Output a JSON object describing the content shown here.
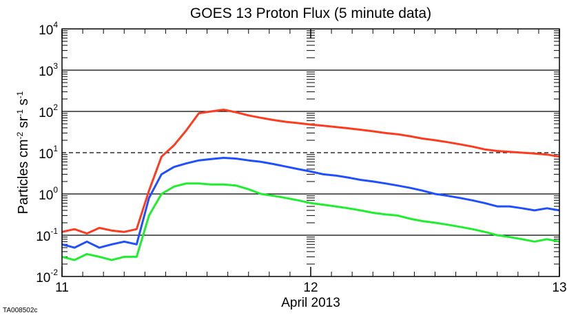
{
  "chart_data": {
    "type": "line",
    "title": "GOES 13 Proton Flux (5 minute data)",
    "ylabel": [
      "Particles cm",
      "-2",
      " sr",
      "-1",
      " s",
      "-1"
    ],
    "xlabel": "April 2013",
    "footnote": "TA008502c",
    "log_y": true,
    "grid": true,
    "threshold": 10,
    "xlim": [
      11,
      13
    ],
    "xticks": [
      11,
      12,
      13
    ],
    "ylim": [
      0.01,
      10000
    ],
    "yticks": [
      {
        "value": 0.01,
        "label": "10",
        "exponent": "-2"
      },
      {
        "value": 0.1,
        "label": "10",
        "exponent": "-1"
      },
      {
        "value": 1,
        "label": "10",
        "exponent": "0"
      },
      {
        "value": 10,
        "label": "10",
        "exponent": "1"
      },
      {
        "value": 100,
        "label": "10",
        "exponent": "2"
      },
      {
        "value": 1000,
        "label": "10",
        "exponent": "3"
      },
      {
        "value": 10000,
        "label": "10",
        "exponent": "4"
      }
    ],
    "x": [
      11.0,
      11.05,
      11.1,
      11.15,
      11.2,
      11.25,
      11.3,
      11.35,
      11.4,
      11.45,
      11.5,
      11.55,
      11.6,
      11.65,
      11.7,
      11.75,
      11.8,
      11.85,
      11.9,
      11.95,
      12.0,
      12.05,
      12.1,
      12.15,
      12.2,
      12.25,
      12.3,
      12.35,
      12.4,
      12.45,
      12.5,
      12.55,
      12.6,
      12.65,
      12.7,
      12.75,
      12.8,
      12.85,
      12.9,
      12.95,
      13.0
    ],
    "series": [
      {
        "color": "#ff3b1f",
        "values": [
          0.12,
          0.14,
          0.11,
          0.15,
          0.13,
          0.12,
          0.14,
          1.2,
          8,
          15,
          35,
          90,
          100,
          110,
          95,
          80,
          70,
          62,
          56,
          52,
          48,
          45,
          42,
          39,
          36,
          33,
          30,
          28,
          25,
          22,
          20,
          18,
          16,
          14,
          12,
          11,
          10.5,
          10,
          9.5,
          9,
          8
        ]
      },
      {
        "color": "#1f4fff",
        "values": [
          0.06,
          0.05,
          0.07,
          0.05,
          0.06,
          0.07,
          0.06,
          0.8,
          3,
          4.5,
          5.5,
          6.5,
          7,
          7.5,
          7.2,
          6.5,
          6,
          5.3,
          4.6,
          4,
          3.5,
          3,
          2.8,
          2.5,
          2.2,
          2,
          1.8,
          1.6,
          1.4,
          1.2,
          1,
          0.9,
          0.8,
          0.7,
          0.6,
          0.5,
          0.5,
          0.45,
          0.4,
          0.45,
          0.4
        ]
      },
      {
        "color": "#1fee2f",
        "values": [
          0.03,
          0.025,
          0.035,
          0.03,
          0.025,
          0.03,
          0.03,
          0.3,
          1,
          1.5,
          1.8,
          1.8,
          1.7,
          1.7,
          1.6,
          1.3,
          1,
          0.9,
          0.8,
          0.7,
          0.6,
          0.55,
          0.5,
          0.45,
          0.4,
          0.35,
          0.32,
          0.3,
          0.25,
          0.22,
          0.2,
          0.18,
          0.16,
          0.14,
          0.12,
          0.1,
          0.09,
          0.08,
          0.07,
          0.08,
          0.07
        ]
      }
    ]
  }
}
